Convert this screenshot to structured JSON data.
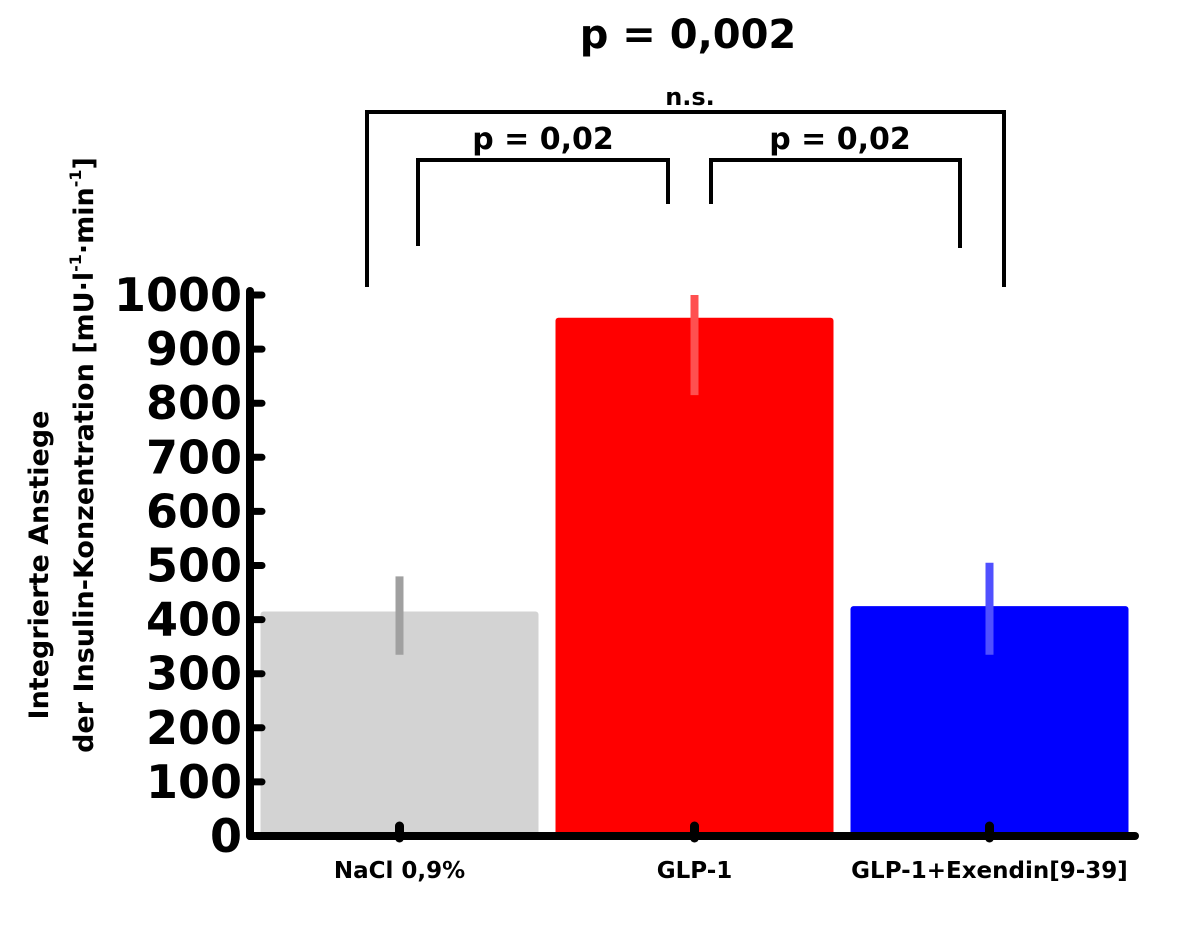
{
  "chart_data": {
    "type": "bar",
    "title": "p = 0,002",
    "ylabel_line1": "Integrierte Anstiege",
    "ylabel_line2_main": "der Insulin-Konzentration [mU·l",
    "ylabel_sup1": "-1",
    "ylabel_mid": "·min",
    "ylabel_sup2": "-1",
    "ylabel_end": "]",
    "xlabel": "",
    "ylim": [
      0,
      1000
    ],
    "yticks": [
      "0",
      "100",
      "200",
      "300",
      "400",
      "500",
      "600",
      "700",
      "800",
      "900",
      "1000"
    ],
    "categories": [
      "NaCl 0,9%",
      "GLP-1",
      "GLP-1+Exendin[9-39]"
    ],
    "values": [
      415,
      958,
      425
    ],
    "error_low": [
      335,
      815,
      335
    ],
    "error_high": [
      480,
      1000,
      505
    ],
    "colors": [
      "#d3d3d3",
      "#ff0000",
      "#0000ff"
    ],
    "error_colors": [
      "#a0a0a0",
      "#ff5050",
      "#5050ff"
    ],
    "grid": false,
    "annotations": {
      "bracket_outer_label": "n.s.",
      "bracket_left_label": "p = 0,02",
      "bracket_right_label": "p = 0,02"
    }
  }
}
